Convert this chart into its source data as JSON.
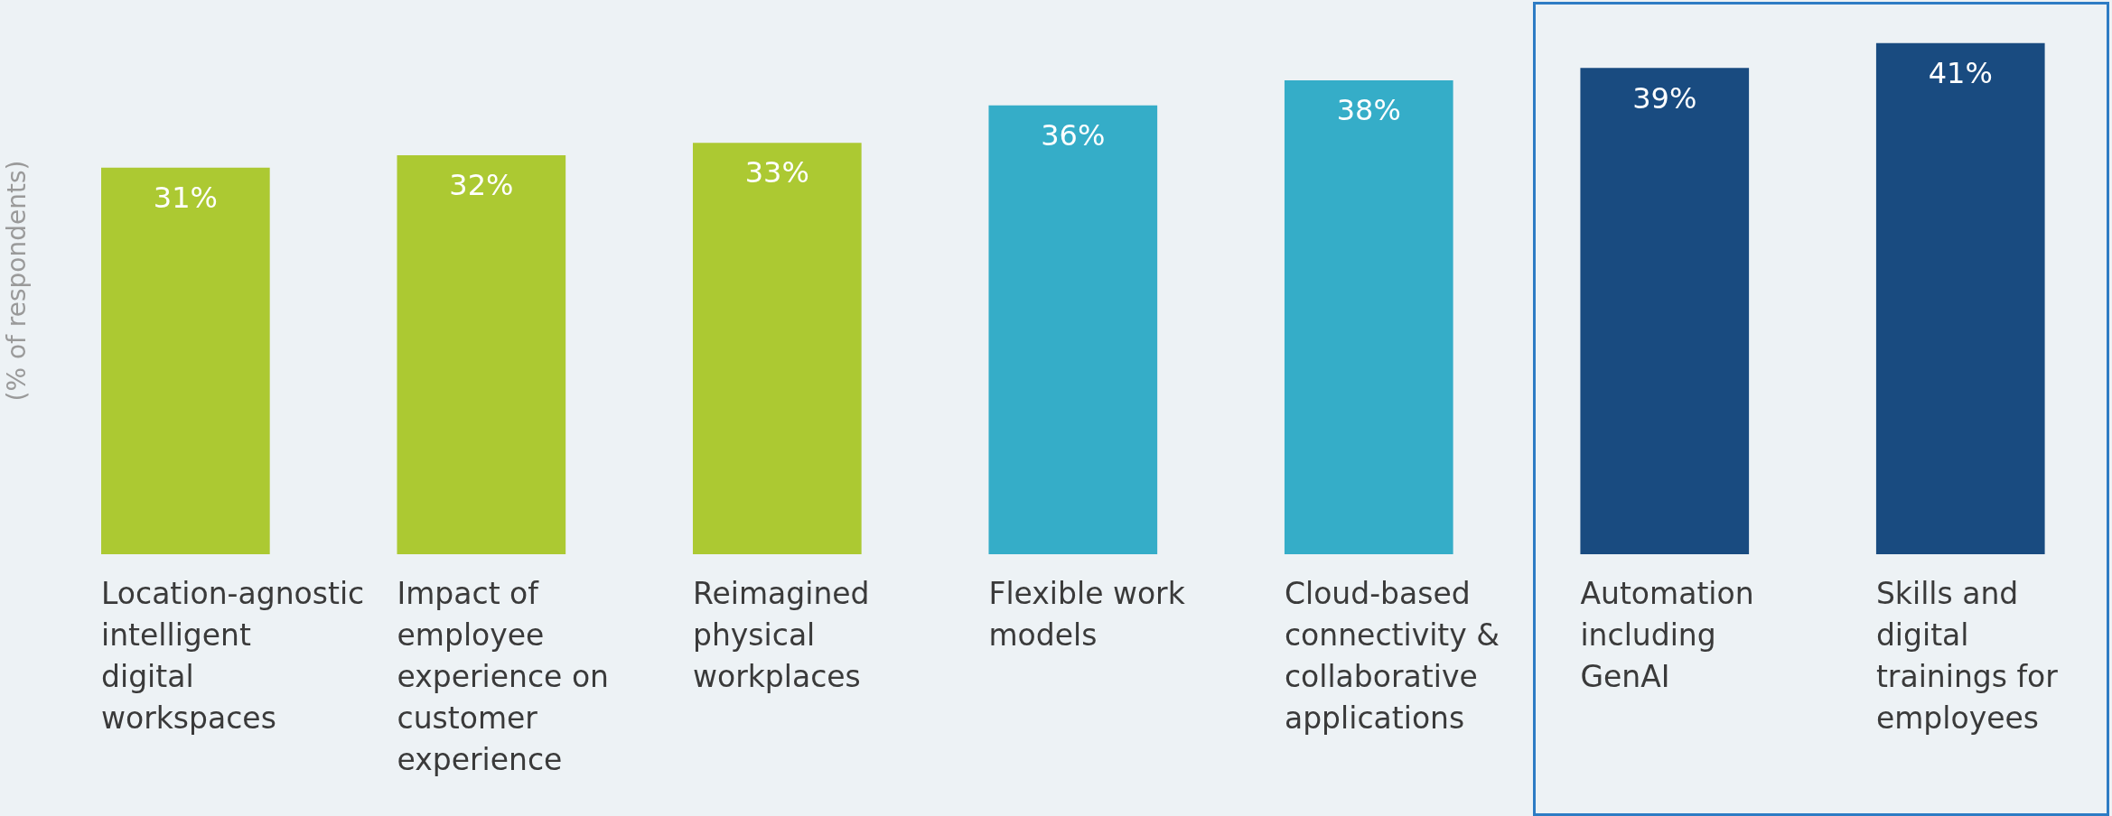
{
  "chart_data": {
    "type": "bar",
    "ylabel": "(% of respondents)",
    "categories": [
      "Location-agnostic intelligent digital workspaces",
      "Impact of employee experience on customer experience",
      "Reimagined physical workplaces",
      "Flexible work models",
      "Cloud-based connectivity & collaborative applications",
      "Automation including GenAI",
      "Skills and digital trainings for employees"
    ],
    "values": [
      31,
      32,
      33,
      36,
      38,
      39,
      41
    ],
    "colors": [
      "#acc932",
      "#acc932",
      "#acc932",
      "#35adc8",
      "#35adc8",
      "#194b80",
      "#194b80"
    ],
    "value_labels": [
      "31%",
      "32%",
      "33%",
      "36%",
      "38%",
      "39%",
      "41%"
    ],
    "grid": false,
    "legend": false
  }
}
